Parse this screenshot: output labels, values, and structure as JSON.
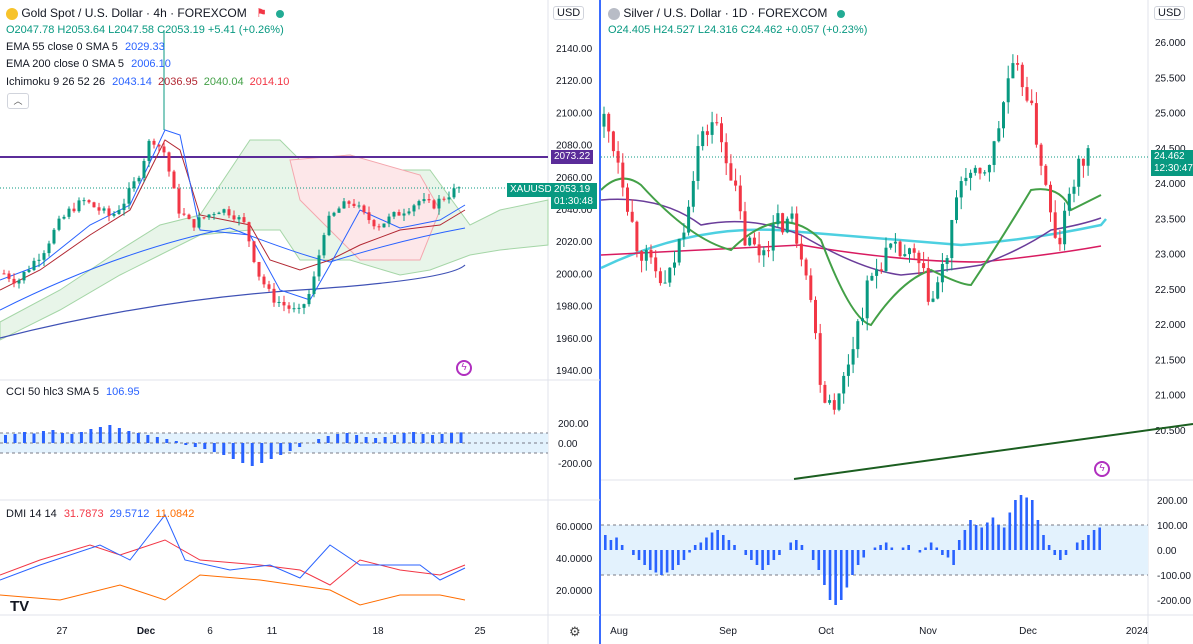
{
  "left": {
    "title": "Gold Spot / U.S. Dollar · 4h · FOREXCOM",
    "ohlc": {
      "o": "O2047.78",
      "h": "H2053.64",
      "l": "L2047.58",
      "c": "C2053.19",
      "chg": "+5.41 (+0.26%)"
    },
    "indicators": [
      {
        "name": "EMA 55 close 0 SMA 5",
        "values": [
          "2029.33"
        ],
        "colors": [
          "#2962ff"
        ]
      },
      {
        "name": "EMA 200 close 0 SMA 5",
        "values": [
          "2006.10"
        ],
        "colors": [
          "#2962ff"
        ]
      },
      {
        "name": "Ichimoku 9 26 52 26",
        "values": [
          "2043.14",
          "2036.95",
          "2040.04",
          "2014.10"
        ],
        "colors": [
          "#2962ff",
          "#b22833",
          "#43a047",
          "#f23645"
        ]
      }
    ],
    "currency": "USD",
    "price_axis": [
      "2140.00",
      "2120.00",
      "2100.00",
      "2080.00",
      "2060.00",
      "2040.00",
      "2020.00",
      "2000.00",
      "1980.00",
      "1960.00",
      "1940.00"
    ],
    "level_label": "2073.22",
    "symbol_label": "XAUUSD",
    "last_price": "2053.19",
    "countdown": "01:30:48",
    "cci": {
      "name": "CCI 50 hlc3 SMA 5",
      "value": "106.95",
      "axis": [
        "200.00",
        "0.00",
        "-200.00"
      ]
    },
    "dmi": {
      "name": "DMI 14 14",
      "values": [
        "31.7873",
        "29.5712",
        "11.0842"
      ],
      "colors": [
        "#f23645",
        "#2962ff",
        "#ff6d00"
      ],
      "axis": [
        "60.0000",
        "40.0000",
        "20.0000"
      ]
    },
    "time_axis": [
      "27",
      "Dec",
      "6",
      "11",
      "18",
      "25"
    ],
    "logo": "TV"
  },
  "right": {
    "title": "Silver / U.S. Dollar · 1D · FOREXCOM",
    "ohlc": {
      "o": "O24.405",
      "h": "H24.527",
      "l": "L24.316",
      "c": "C24.462",
      "chg": "+0.057 (+0.23%)"
    },
    "currency": "USD",
    "price_axis": [
      "26.000",
      "25.500",
      "25.000",
      "24.500",
      "24.000",
      "23.500",
      "23.000",
      "22.500",
      "22.000",
      "21.500",
      "21.000",
      "20.500"
    ],
    "last_price": "24.462",
    "countdown": "12:30:47",
    "osc_axis": [
      "200.00",
      "100.00",
      "0.00",
      "-100.00",
      "-200.00"
    ],
    "time_axis": [
      "Aug",
      "Sep",
      "Oct",
      "Nov",
      "Dec",
      "2024"
    ]
  },
  "colors": {
    "up": "#089981",
    "down": "#f23645",
    "level": "#5b2c99",
    "osc": "#2962ff"
  }
}
